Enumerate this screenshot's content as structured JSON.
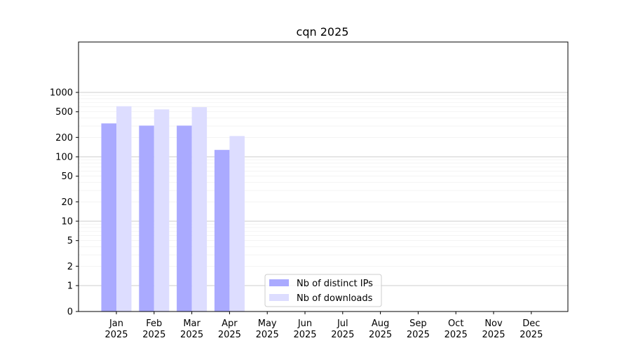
{
  "chart_data": {
    "type": "bar",
    "title": "cqn 2025",
    "xlabel": "",
    "ylabel": "",
    "y_scale": "symlog",
    "ylim": [
      0,
      1200
    ],
    "grid": true,
    "legend_position": "bottom-center",
    "categories": [
      [
        "Jan",
        "2025"
      ],
      [
        "Feb",
        "2025"
      ],
      [
        "Mar",
        "2025"
      ],
      [
        "Apr",
        "2025"
      ],
      [
        "May",
        "2025"
      ],
      [
        "Jun",
        "2025"
      ],
      [
        "Jul",
        "2025"
      ],
      [
        "Aug",
        "2025"
      ],
      [
        "Sep",
        "2025"
      ],
      [
        "Oct",
        "2025"
      ],
      [
        "Nov",
        "2025"
      ],
      [
        "Dec",
        "2025"
      ]
    ],
    "y_ticks": [
      {
        "value": 0,
        "label": "0"
      },
      {
        "value": 1,
        "label": "1"
      },
      {
        "value": 2,
        "label": "2"
      },
      {
        "value": 5,
        "label": "5"
      },
      {
        "value": 10,
        "label": "10"
      },
      {
        "value": 20,
        "label": "20"
      },
      {
        "value": 50,
        "label": "50"
      },
      {
        "value": 100,
        "label": "100"
      },
      {
        "value": 200,
        "label": "200"
      },
      {
        "value": 500,
        "label": "500"
      },
      {
        "value": 1000,
        "label": "1000"
      }
    ],
    "series": [
      {
        "name": "Nb of distinct IPs",
        "color": "#aaaaff",
        "values": [
          330,
          305,
          305,
          128,
          null,
          null,
          null,
          null,
          null,
          null,
          null,
          null
        ]
      },
      {
        "name": "Nb of downloads",
        "color": "#ddddff",
        "values": [
          610,
          545,
          590,
          210,
          null,
          null,
          null,
          null,
          null,
          null,
          null,
          null
        ]
      }
    ]
  }
}
